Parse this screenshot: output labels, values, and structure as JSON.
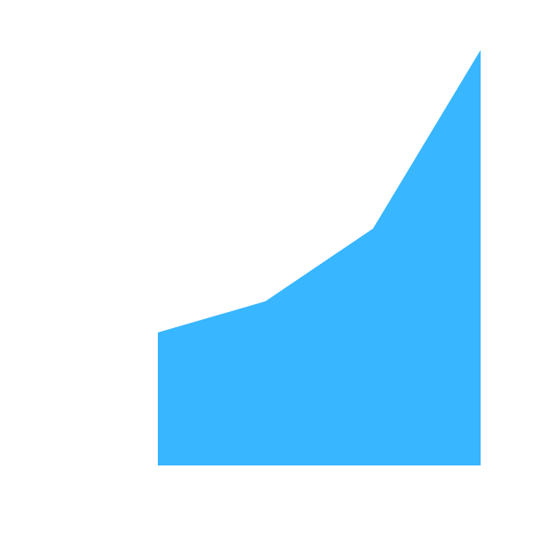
{
  "chart_data": {
    "type": "area",
    "x": [
      1,
      2,
      3,
      4
    ],
    "values": [
      0.32,
      0.395,
      0.57,
      1.0
    ],
    "ylim": [
      0,
      1
    ],
    "grid": false,
    "axes_visible": false,
    "colors": {
      "area_fill": "#38b6ff",
      "background": "#ffffff"
    }
  }
}
